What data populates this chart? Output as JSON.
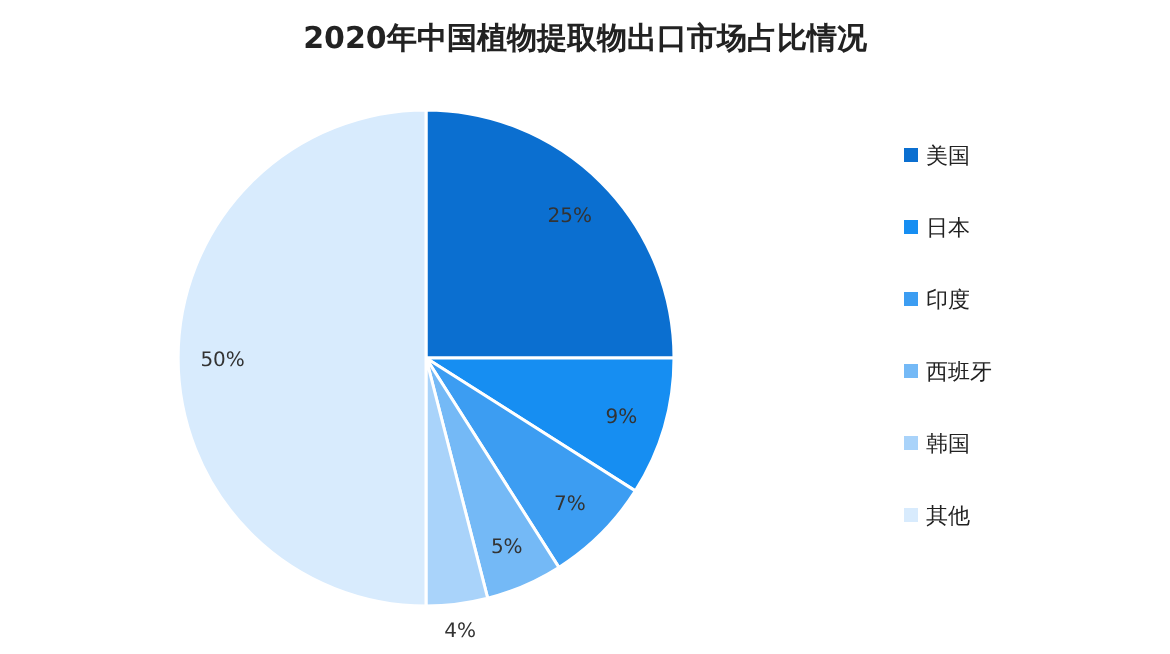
{
  "chart_data": {
    "type": "pie",
    "title": "2020年中国植物提取物出口市场占比情况",
    "categories": [
      "美国",
      "日本",
      "印度",
      "西班牙",
      "韩国",
      "其他"
    ],
    "values": [
      25,
      9,
      7,
      5,
      4,
      50
    ],
    "colors": [
      "#0b6fd0",
      "#168ef2",
      "#3c9df2",
      "#74b9f6",
      "#a9d3fa",
      "#d8ebfd"
    ],
    "value_labels": [
      "25%",
      "9%",
      "7%",
      "5%",
      "4%",
      "50%"
    ],
    "legend": "right"
  }
}
